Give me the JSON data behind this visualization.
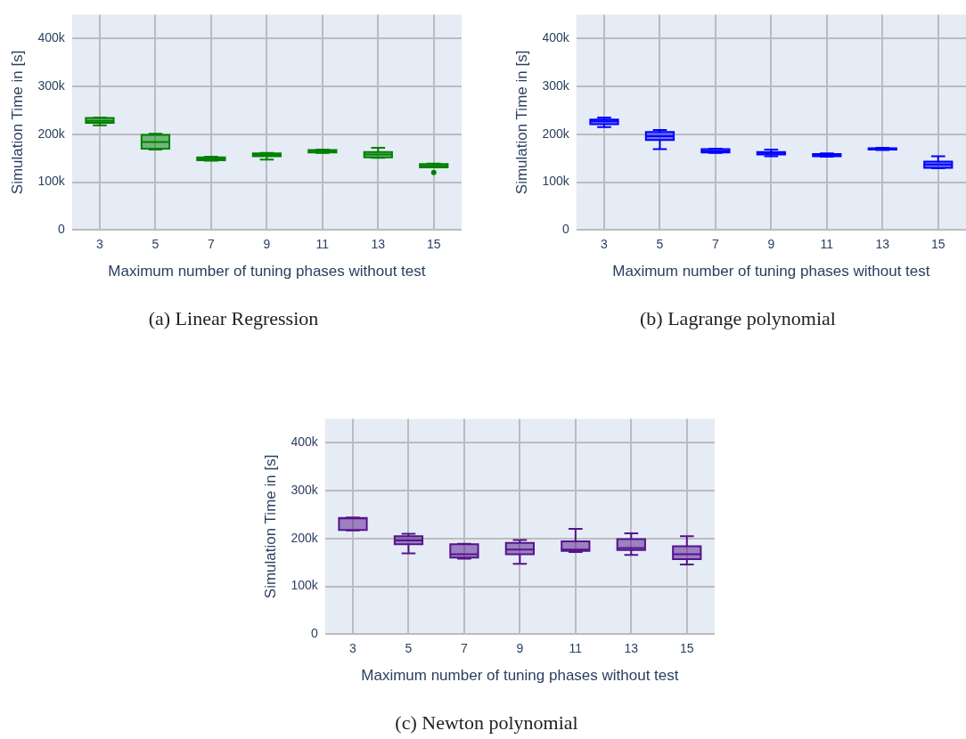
{
  "chart_data": [
    {
      "type": "box",
      "title": "(a) Linear Regression",
      "xlabel": "Maximum number of tuning phases without test",
      "ylabel": "Simulation Time in [s]",
      "categories": [
        "3",
        "5",
        "7",
        "9",
        "11",
        "13",
        "15"
      ],
      "ylim": [
        0,
        450000
      ],
      "yticks": [
        {
          "value": 0,
          "label": "0"
        },
        {
          "value": 100000,
          "label": "100k"
        },
        {
          "value": 200000,
          "label": "200k"
        },
        {
          "value": 300000,
          "label": "300k"
        },
        {
          "value": 400000,
          "label": "400k"
        }
      ],
      "grid": true,
      "series": [
        {
          "color": "#008000",
          "boxes": [
            {
              "low": 219000,
              "q1": 224000,
              "median": 228000,
              "q3": 234000,
              "high": 235000
            },
            {
              "low": 168000,
              "q1": 170000,
              "median": 184000,
              "q3": 199000,
              "high": 201000
            },
            {
              "low": 145000,
              "q1": 146000,
              "median": 149000,
              "q3": 152000,
              "high": 153000
            },
            {
              "low": 147000,
              "q1": 154000,
              "median": 157000,
              "q3": 160000,
              "high": 161000
            },
            {
              "low": 161000,
              "q1": 162000,
              "median": 165000,
              "q3": 167000,
              "high": 168000
            },
            {
              "low": 151000,
              "q1": 152000,
              "median": 158000,
              "q3": 163000,
              "high": 172000
            },
            {
              "low": 131000,
              "q1": 131000,
              "median": 134000,
              "q3": 138000,
              "high": 139000,
              "outliers": [
                120000
              ]
            }
          ]
        }
      ]
    },
    {
      "type": "box",
      "title": "(b) Lagrange polynomial",
      "xlabel": "Maximum number of tuning phases without test",
      "ylabel": "Simulation Time in [s]",
      "categories": [
        "3",
        "5",
        "7",
        "9",
        "11",
        "13",
        "15"
      ],
      "ylim": [
        0,
        450000
      ],
      "yticks": [
        {
          "value": 0,
          "label": "0"
        },
        {
          "value": 100000,
          "label": "100k"
        },
        {
          "value": 200000,
          "label": "200k"
        },
        {
          "value": 300000,
          "label": "300k"
        },
        {
          "value": 400000,
          "label": "400k"
        }
      ],
      "grid": true,
      "series": [
        {
          "color": "#0000ff",
          "boxes": [
            {
              "low": 215000,
              "q1": 221000,
              "median": 227000,
              "q3": 231000,
              "high": 235000
            },
            {
              "low": 169000,
              "q1": 188000,
              "median": 196000,
              "q3": 205000,
              "high": 209000
            },
            {
              "low": 161000,
              "q1": 162000,
              "median": 165000,
              "q3": 169000,
              "high": 170000
            },
            {
              "low": 154000,
              "q1": 158000,
              "median": 161000,
              "q3": 163000,
              "high": 168000
            },
            {
              "low": 153000,
              "q1": 154000,
              "median": 157000,
              "q3": 159000,
              "high": 160000
            },
            {
              "low": 167000,
              "q1": 168000,
              "median": 169000,
              "q3": 171000,
              "high": 172000
            },
            {
              "low": 129000,
              "q1": 130000,
              "median": 137000,
              "q3": 143000,
              "high": 154000
            }
          ]
        }
      ]
    },
    {
      "type": "box",
      "title": "(c) Newton polynomial",
      "xlabel": "Maximum number of tuning phases without test",
      "ylabel": "Simulation Time in [s]",
      "categories": [
        "3",
        "5",
        "7",
        "9",
        "11",
        "13",
        "15"
      ],
      "ylim": [
        0,
        450000
      ],
      "yticks": [
        {
          "value": 0,
          "label": "0"
        },
        {
          "value": 100000,
          "label": "100k"
        },
        {
          "value": 200000,
          "label": "200k"
        },
        {
          "value": 300000,
          "label": "300k"
        },
        {
          "value": 400000,
          "label": "400k"
        }
      ],
      "grid": true,
      "series": [
        {
          "color": "#54148c",
          "boxes": [
            {
              "low": 217000,
              "q1": 218000,
              "median": 242000,
              "q3": 243000,
              "high": 244000
            },
            {
              "low": 169000,
              "q1": 188000,
              "median": 196000,
              "q3": 205000,
              "high": 210000
            },
            {
              "low": 158000,
              "q1": 160000,
              "median": 167000,
              "q3": 188000,
              "high": 189000
            },
            {
              "low": 147000,
              "q1": 167000,
              "median": 177000,
              "q3": 191000,
              "high": 197000
            },
            {
              "low": 172000,
              "q1": 174000,
              "median": 177000,
              "q3": 194000,
              "high": 220000
            },
            {
              "low": 166000,
              "q1": 176000,
              "median": 180000,
              "q3": 199000,
              "high": 211000
            },
            {
              "low": 146000,
              "q1": 157000,
              "median": 167000,
              "q3": 184000,
              "high": 205000
            }
          ]
        }
      ]
    }
  ]
}
